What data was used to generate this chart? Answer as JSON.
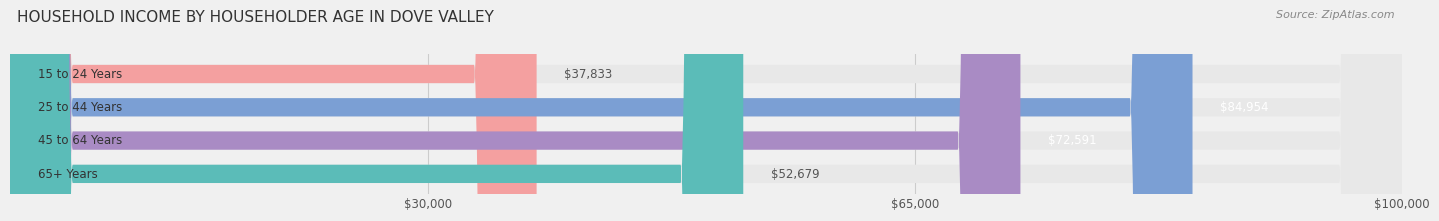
{
  "title": "HOUSEHOLD INCOME BY HOUSEHOLDER AGE IN DOVE VALLEY",
  "source": "Source: ZipAtlas.com",
  "categories": [
    "15 to 24 Years",
    "25 to 44 Years",
    "45 to 64 Years",
    "65+ Years"
  ],
  "values": [
    37833,
    84954,
    72591,
    52679
  ],
  "colors": [
    "#f4a0a0",
    "#7b9fd4",
    "#a98bc4",
    "#5bbcb8"
  ],
  "bar_labels": [
    "$37,833",
    "$84,954",
    "$72,591",
    "$52,679"
  ],
  "label_colors": [
    "#555555",
    "#ffffff",
    "#ffffff",
    "#555555"
  ],
  "xmin": 0,
  "xmax": 100000,
  "xticks": [
    30000,
    65000,
    100000
  ],
  "xtick_labels": [
    "$30,000",
    "$65,000",
    "$100,000"
  ],
  "bar_height": 0.55,
  "background_color": "#f0f0f0",
  "bar_bg_color": "#e8e8e8",
  "title_fontsize": 11,
  "source_fontsize": 8,
  "tick_fontsize": 8.5,
  "label_fontsize": 8.5,
  "cat_fontsize": 8.5
}
